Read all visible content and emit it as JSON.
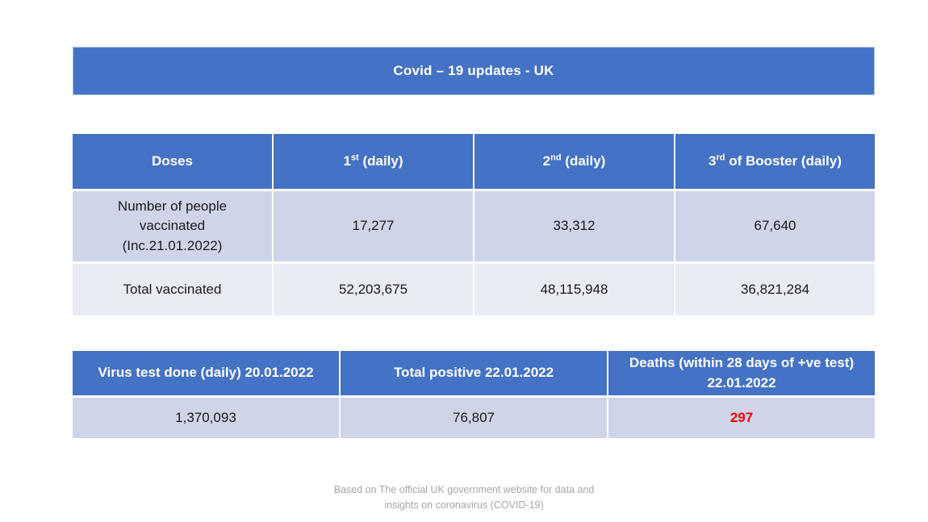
{
  "slide": {
    "title": "Covid – 19 updates - UK",
    "footer": "Based on The official UK government website for data and\ninsights on coronavirus (COVID-19)"
  },
  "colors": {
    "header_blue": "#4472C4",
    "row_periwinkle": "#CFD4E8",
    "row_light": "#E9EBF5",
    "deaths_red": "#FF0000",
    "footer_gray": "#A6A6A6"
  },
  "doses_table": {
    "headers": {
      "doses": "Doses",
      "first": {
        "num": "1",
        "ord": "st",
        "rest": " (daily)"
      },
      "second": {
        "num": "2",
        "ord": "nd",
        "rest": " (daily)"
      },
      "third": {
        "num": "3",
        "ord": "rd",
        "rest": " of Booster (daily)"
      }
    },
    "rows": [
      {
        "label": "Number of people\nvaccinated\n(Inc.21.01.2022)",
        "first": "17,277",
        "second": "33,312",
        "third": "67,640"
      },
      {
        "label": "Total vaccinated",
        "first": "52,203,675",
        "second": "48,115,948",
        "third": "36,821,284"
      }
    ]
  },
  "stats_table": {
    "headers": {
      "tests": "Virus test done (daily) 20.01.2022",
      "positive": "Total positive 22.01.2022",
      "deaths": "Deaths (within 28 days of +ve test)\n22.01.2022"
    },
    "row": {
      "tests": "1,370,093",
      "positive": "76,807",
      "deaths": "297"
    }
  }
}
